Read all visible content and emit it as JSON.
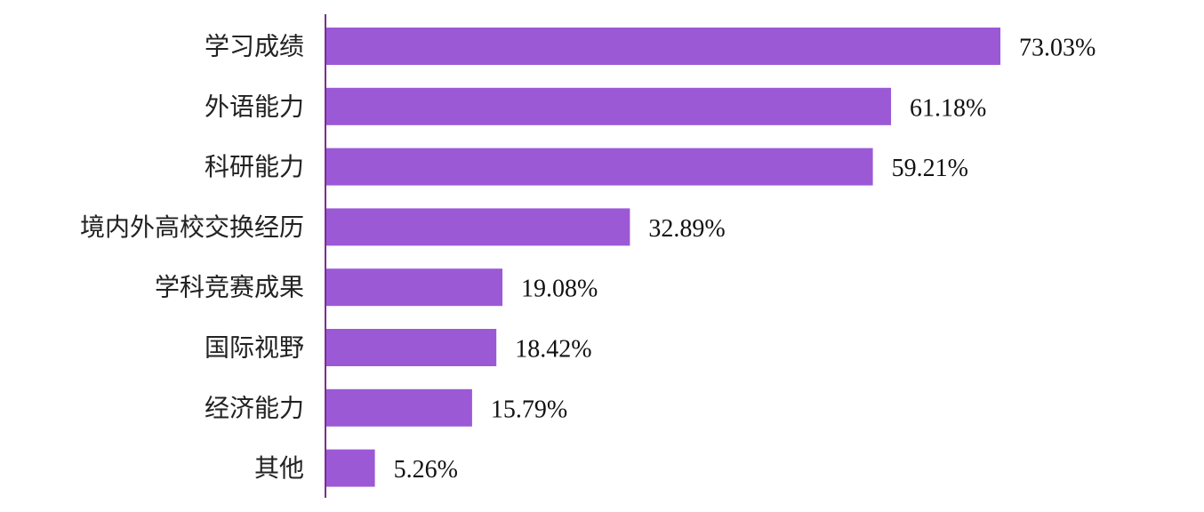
{
  "chart_data": {
    "type": "bar",
    "orientation": "horizontal",
    "categories": [
      "学习成绩",
      "外语能力",
      "科研能力",
      "境内外高校交换经历",
      "学科竞赛成果",
      "国际视野",
      "经济能力",
      "其他"
    ],
    "values": [
      73.03,
      61.18,
      59.21,
      32.89,
      19.08,
      18.42,
      15.79,
      5.26
    ],
    "value_labels": [
      "73.03%",
      "61.18%",
      "59.21%",
      "32.89%",
      "19.08%",
      "18.42%",
      "15.79%",
      "5.26%"
    ],
    "unit": "%",
    "xlim": [
      0,
      100
    ],
    "grid": false,
    "legend": "none",
    "colors": {
      "bar": "#9b59d6",
      "axis": "#7b2d8e"
    }
  }
}
